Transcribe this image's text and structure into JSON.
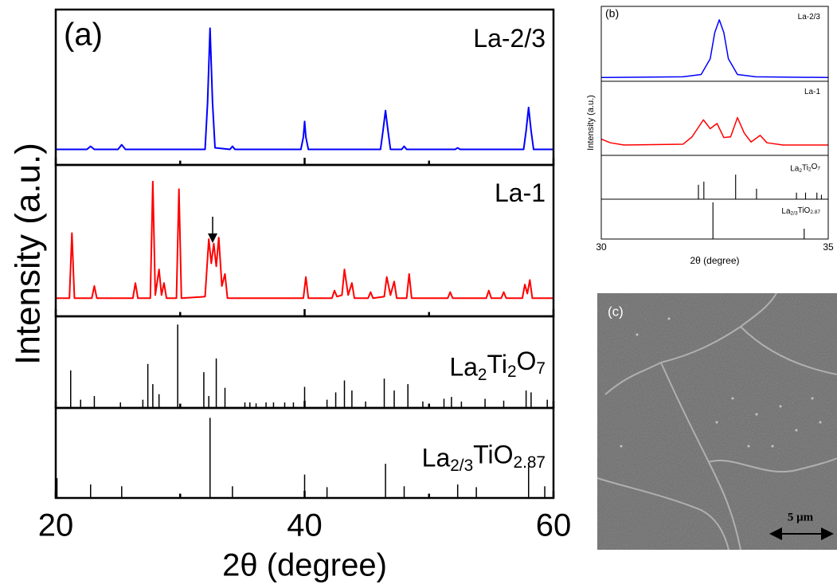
{
  "chart_data": [
    {
      "type": "stacked",
      "panel_label": "(a)",
      "xlabel": "2θ (degree)",
      "ylabel": "Intensity (a.u.)",
      "xlim": [
        20,
        60
      ],
      "xticks": [
        20,
        40,
        60
      ],
      "xminor": [
        30,
        50
      ],
      "ylim": [
        0,
        100
      ],
      "series": [
        {
          "name": "La-2/3",
          "type": "line",
          "color": "#0000ff",
          "x": [
            20,
            22.5,
            22.8,
            23.1,
            25.0,
            25.3,
            25.6,
            32.0,
            32.2,
            32.4,
            32.6,
            32.8,
            34.0,
            34.2,
            34.4,
            39.7,
            39.9,
            40.0,
            40.1,
            40.3,
            46.1,
            46.3,
            46.5,
            46.7,
            46.9,
            47.8,
            48.0,
            48.2,
            52.1,
            52.3,
            52.5,
            57.6,
            57.8,
            58.0,
            58.2,
            58.4,
            60
          ],
          "values": [
            10,
            10,
            12,
            10,
            10,
            13,
            10,
            10,
            40,
            88,
            40,
            11,
            10,
            12,
            10,
            10,
            18,
            28,
            18,
            10,
            10,
            22,
            35,
            22,
            10,
            10,
            12,
            10,
            10,
            11,
            10,
            10,
            22,
            37,
            22,
            10,
            10
          ]
        },
        {
          "name": "La-1",
          "type": "line",
          "color": "#ff0000",
          "x": [
            20,
            21.1,
            21.3,
            21.5,
            22.9,
            23.1,
            23.3,
            26.2,
            26.4,
            26.6,
            27.6,
            27.8,
            28.0,
            28.3,
            28.5,
            28.7,
            28.9,
            29.7,
            29.9,
            30.1,
            32.0,
            32.3,
            32.5,
            32.7,
            32.9,
            33.1,
            33.35,
            33.6,
            33.8,
            39.9,
            40.1,
            40.3,
            42.2,
            42.4,
            42.6,
            43.0,
            43.2,
            43.5,
            43.8,
            44.0,
            45.1,
            45.3,
            45.5,
            46.4,
            46.6,
            46.9,
            47.2,
            47.4,
            48.2,
            48.4,
            48.6,
            51.5,
            51.7,
            51.9,
            54.6,
            54.8,
            55.0,
            55.8,
            56.0,
            56.2,
            57.5,
            57.7,
            57.9,
            58.1,
            58.3,
            60
          ],
          "values": [
            12,
            12,
            55,
            12,
            12,
            20,
            12,
            12,
            22,
            12,
            12,
            89,
            14,
            31,
            14,
            22,
            12,
            12,
            84,
            12,
            13,
            51,
            35,
            48,
            33,
            52,
            20,
            28,
            12,
            12,
            26,
            12,
            12,
            17,
            13,
            14,
            31,
            14,
            22,
            12,
            12,
            16,
            12,
            13,
            26,
            14,
            23,
            12,
            12,
            28,
            12,
            12,
            16,
            12,
            12,
            17,
            12,
            12,
            16,
            12,
            12,
            21,
            15,
            24,
            12,
            12
          ]
        },
        {
          "name": "La2Ti2O7",
          "type": "stick",
          "color": "#000000",
          "x": [
            21.2,
            22.0,
            23.1,
            25.2,
            27.0,
            27.4,
            27.8,
            28.3,
            29.8,
            31.9,
            32.3,
            32.9,
            33.6,
            35.2,
            35.6,
            36.1,
            36.9,
            37.5,
            38.4,
            39.1,
            40.0,
            41.8,
            42.5,
            43.2,
            43.8,
            44.9,
            46.4,
            47.2,
            48.3,
            49.5,
            51.2,
            51.8,
            52.6,
            54.5,
            56.0,
            57.8,
            58.2,
            59.5
          ],
          "values": [
            41,
            9,
            13,
            6,
            9,
            48,
            26,
            15,
            91,
            39,
            13,
            54,
            22,
            6,
            6,
            5,
            6,
            6,
            6,
            6,
            23,
            9,
            17,
            30,
            19,
            7,
            32,
            19,
            26,
            7,
            10,
            12,
            7,
            10,
            8,
            19,
            17,
            9
          ]
        },
        {
          "name": "La2/3TiO2.87",
          "type": "stick",
          "color": "#000000",
          "x": [
            20.1,
            22.8,
            25.3,
            32.4,
            34.2,
            40.0,
            41.8,
            46.5,
            48.0,
            52.3,
            53.8,
            58.0,
            59.3
          ],
          "values": [
            22,
            15,
            13,
            89,
            13,
            26,
            12,
            38,
            13,
            15,
            12,
            35,
            13
          ]
        }
      ]
    },
    {
      "type": "stacked",
      "panel_label": "(b)",
      "xlabel": "2θ (degree)",
      "ylabel": "Intensity (a.u.)",
      "xlim": [
        30,
        35
      ],
      "xticks": [
        30,
        35
      ],
      "ylim": [
        0,
        100
      ],
      "series": [
        {
          "name": "La-2/3",
          "type": "line",
          "color": "#0000ff",
          "x": [
            30,
            31.8,
            32.2,
            32.4,
            32.5,
            32.6,
            32.7,
            32.8,
            33.0,
            33.4,
            35
          ],
          "values": [
            5,
            6,
            9,
            30,
            65,
            82,
            65,
            30,
            9,
            6,
            5
          ]
        },
        {
          "name": "La-1",
          "type": "line",
          "color": "#ff0000",
          "x": [
            30,
            30.2,
            30.5,
            31.8,
            32.0,
            32.25,
            32.4,
            32.55,
            32.7,
            32.85,
            33.0,
            33.15,
            33.3,
            33.5,
            33.65,
            34.0,
            35
          ],
          "values": [
            22,
            17,
            14,
            15,
            25,
            48,
            36,
            43,
            24,
            25,
            51,
            30,
            18,
            27,
            17,
            14,
            14
          ]
        },
        {
          "name": "La2Ti2O7",
          "type": "stick",
          "color": "#000000",
          "x": [
            32.14,
            32.26,
            32.96,
            33.42,
            34.3,
            34.5,
            34.75,
            34.85
          ],
          "values": [
            33,
            40,
            56,
            24,
            15,
            15,
            15,
            10
          ]
        },
        {
          "name": "La2/3TiO2.87",
          "type": "stick",
          "color": "#000000",
          "x": [
            32.46,
            34.47
          ],
          "values": [
            92,
            26
          ]
        }
      ]
    }
  ],
  "image": {
    "label": "(c)",
    "scale_bar": "5 μm"
  }
}
